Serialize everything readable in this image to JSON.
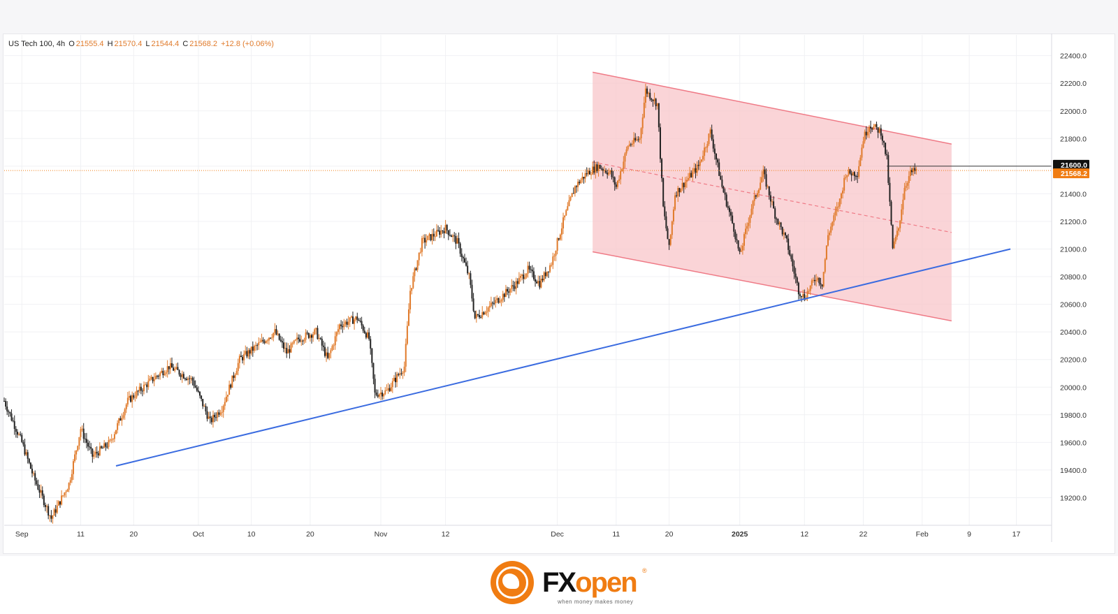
{
  "legend": {
    "symbol": "US Tech 100, 4h",
    "open_label": "O",
    "open": "21555.4",
    "high_label": "H",
    "high": "21570.4",
    "low_label": "L",
    "low": "21544.4",
    "close_label": "C",
    "close": "21568.2",
    "change": "+12.8 (+0.06%)"
  },
  "brand": {
    "name_part1": "FX",
    "name_part2": "open",
    "registered": "®",
    "tagline": "when money makes money"
  },
  "colors": {
    "up": "#e07a2a",
    "down": "#222222",
    "channel_fill": "#f8c5c9",
    "channel_edge": "#ef7a86",
    "trendline": "#3a6be0",
    "current_price": "#f07c12"
  },
  "chart_data": {
    "type": "candlestick",
    "timeframe": "4h",
    "y_axis_ticks": [
      19200,
      19400,
      19600,
      19800,
      20000,
      20200,
      20400,
      20600,
      20800,
      21000,
      21200,
      21400,
      21600,
      21800,
      22000,
      22200,
      22400
    ],
    "y_axis_labels": [
      "19200.0",
      "19400.0",
      "19600.0",
      "19800.0",
      "20000.0",
      "20200.0",
      "20400.0",
      "20600.0",
      "20800.0",
      "21000.0",
      "21200.0",
      "21400.0",
      "21600.0",
      "21800.0",
      "22000.0",
      "22200.0",
      "22400.0"
    ],
    "ylim": [
      19000,
      22550
    ],
    "x_range": [
      "2024-08-29",
      "2025-02-23"
    ],
    "x_ticks": [
      {
        "date": "2024-09-01",
        "label": "Sep"
      },
      {
        "date": "2024-09-11",
        "label": "11"
      },
      {
        "date": "2024-09-20",
        "label": "20"
      },
      {
        "date": "2024-10-01",
        "label": "Oct"
      },
      {
        "date": "2024-10-10",
        "label": "10"
      },
      {
        "date": "2024-10-20",
        "label": "20"
      },
      {
        "date": "2024-11-01",
        "label": "Nov"
      },
      {
        "date": "2024-11-12",
        "label": "12"
      },
      {
        "date": "2024-12-01",
        "label": "Dec"
      },
      {
        "date": "2024-12-11",
        "label": "11"
      },
      {
        "date": "2024-12-20",
        "label": "20"
      },
      {
        "date": "2025-01-01",
        "label": "2025"
      },
      {
        "date": "2025-01-12",
        "label": "12"
      },
      {
        "date": "2025-01-22",
        "label": "22"
      },
      {
        "date": "2025-02-01",
        "label": "Feb"
      },
      {
        "date": "2025-02-09",
        "label": "9"
      },
      {
        "date": "2025-02-17",
        "label": "17"
      }
    ],
    "price_path": [
      {
        "x": "2024-08-29",
        "y": 19900
      },
      {
        "x": "2024-09-01",
        "y": 19600
      },
      {
        "x": "2024-09-03",
        "y": 19350
      },
      {
        "x": "2024-09-06",
        "y": 19050
      },
      {
        "x": "2024-09-09",
        "y": 19300
      },
      {
        "x": "2024-09-11",
        "y": 19700
      },
      {
        "x": "2024-09-13",
        "y": 19500
      },
      {
        "x": "2024-09-16",
        "y": 19600
      },
      {
        "x": "2024-09-19",
        "y": 19900
      },
      {
        "x": "2024-09-23",
        "y": 20050
      },
      {
        "x": "2024-09-26",
        "y": 20150
      },
      {
        "x": "2024-09-30",
        "y": 20050
      },
      {
        "x": "2024-10-03",
        "y": 19750
      },
      {
        "x": "2024-10-05",
        "y": 19850
      },
      {
        "x": "2024-10-08",
        "y": 20200
      },
      {
        "x": "2024-10-11",
        "y": 20300
      },
      {
        "x": "2024-10-14",
        "y": 20400
      },
      {
        "x": "2024-10-16",
        "y": 20250
      },
      {
        "x": "2024-10-18",
        "y": 20350
      },
      {
        "x": "2024-10-21",
        "y": 20400
      },
      {
        "x": "2024-10-23",
        "y": 20200
      },
      {
        "x": "2024-10-25",
        "y": 20450
      },
      {
        "x": "2024-10-28",
        "y": 20500
      },
      {
        "x": "2024-10-30",
        "y": 20350
      },
      {
        "x": "2024-10-31",
        "y": 19950
      },
      {
        "x": "2024-11-02",
        "y": 19970
      },
      {
        "x": "2024-11-05",
        "y": 20150
      },
      {
        "x": "2024-11-06",
        "y": 20700
      },
      {
        "x": "2024-11-08",
        "y": 21050
      },
      {
        "x": "2024-11-12",
        "y": 21150
      },
      {
        "x": "2024-11-14",
        "y": 21050
      },
      {
        "x": "2024-11-16",
        "y": 20800
      },
      {
        "x": "2024-11-17",
        "y": 20500
      },
      {
        "x": "2024-11-20",
        "y": 20600
      },
      {
        "x": "2024-11-24",
        "y": 20750
      },
      {
        "x": "2024-11-26",
        "y": 20850
      },
      {
        "x": "2024-11-28",
        "y": 20750
      },
      {
        "x": "2024-11-30",
        "y": 20900
      },
      {
        "x": "2024-12-02",
        "y": 21200
      },
      {
        "x": "2024-12-04",
        "y": 21450
      },
      {
        "x": "2024-12-06",
        "y": 21550
      },
      {
        "x": "2024-12-08",
        "y": 21600
      },
      {
        "x": "2024-12-10",
        "y": 21550
      },
      {
        "x": "2024-12-11",
        "y": 21450
      },
      {
        "x": "2024-12-13",
        "y": 21750
      },
      {
        "x": "2024-12-15",
        "y": 21800
      },
      {
        "x": "2024-12-16",
        "y": 22150
      },
      {
        "x": "2024-12-18",
        "y": 22050
      },
      {
        "x": "2024-12-19",
        "y": 21300
      },
      {
        "x": "2024-12-20",
        "y": 21000
      },
      {
        "x": "2024-12-21",
        "y": 21400
      },
      {
        "x": "2024-12-23",
        "y": 21500
      },
      {
        "x": "2024-12-25",
        "y": 21600
      },
      {
        "x": "2024-12-27",
        "y": 21850
      },
      {
        "x": "2024-12-29",
        "y": 21450
      },
      {
        "x": "2024-12-31",
        "y": 21150
      },
      {
        "x": "2025-01-01",
        "y": 20950
      },
      {
        "x": "2025-01-03",
        "y": 21300
      },
      {
        "x": "2025-01-05",
        "y": 21550
      },
      {
        "x": "2025-01-07",
        "y": 21250
      },
      {
        "x": "2025-01-09",
        "y": 21050
      },
      {
        "x": "2025-01-11",
        "y": 20700
      },
      {
        "x": "2025-01-12",
        "y": 20650
      },
      {
        "x": "2025-01-14",
        "y": 20800
      },
      {
        "x": "2025-01-15",
        "y": 20750
      },
      {
        "x": "2025-01-16",
        "y": 21100
      },
      {
        "x": "2025-01-18",
        "y": 21350
      },
      {
        "x": "2025-01-19",
        "y": 21550
      },
      {
        "x": "2025-01-21",
        "y": 21550
      },
      {
        "x": "2025-01-22",
        "y": 21800
      },
      {
        "x": "2025-01-23",
        "y": 21900
      },
      {
        "x": "2025-01-25",
        "y": 21850
      },
      {
        "x": "2025-01-26",
        "y": 21650
      },
      {
        "x": "2025-01-27",
        "y": 21000
      },
      {
        "x": "2025-01-28",
        "y": 21150
      },
      {
        "x": "2025-01-29",
        "y": 21450
      },
      {
        "x": "2025-01-30",
        "y": 21550
      },
      {
        "x": "2025-01-31",
        "y": 21568.2
      }
    ],
    "descending_channel": {
      "x_start": "2024-12-07",
      "x_end": "2025-02-06",
      "upper": [
        22280,
        21760
      ],
      "lower": [
        20980,
        20480
      ],
      "median": [
        21630,
        21120
      ]
    },
    "trendline": {
      "points": [
        {
          "x": "2024-09-17",
          "y": 19430
        },
        {
          "x": "2025-02-16",
          "y": 21000
        }
      ]
    },
    "horizontal_level": {
      "y": 21600,
      "x_start": "2025-01-26",
      "label": "21600.0"
    },
    "current_price": {
      "y": 21568.2,
      "label": "21568.2"
    }
  }
}
